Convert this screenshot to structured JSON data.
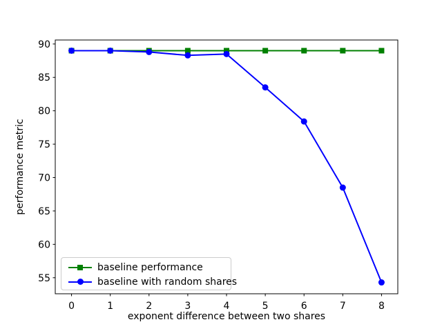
{
  "figure": {
    "background": "#ffffff",
    "frame_color": "#000000"
  },
  "chart_data": {
    "type": "line",
    "title": "",
    "xlabel": "exponent difference between two shares",
    "ylabel": "performance metric",
    "x": [
      0,
      1,
      2,
      3,
      4,
      5,
      6,
      7,
      8
    ],
    "series": [
      {
        "name": "baseline performance",
        "color": "#008000",
        "marker": "square",
        "values": [
          89,
          89,
          89,
          89,
          89,
          89,
          89,
          89,
          89
        ]
      },
      {
        "name": "baseline with random shares",
        "color": "#0000ff",
        "marker": "circle",
        "values": [
          89,
          89,
          88.8,
          88.3,
          88.5,
          83.5,
          78.4,
          68.5,
          54.3
        ]
      }
    ],
    "xticks": [
      0,
      1,
      2,
      3,
      4,
      5,
      6,
      7,
      8
    ],
    "yticks": [
      55,
      60,
      65,
      70,
      75,
      80,
      85,
      90
    ],
    "xlim": [
      -0.42,
      8.42
    ],
    "ylim": [
      52.6,
      90.6
    ],
    "grid": false,
    "legend": {
      "position": "lower left"
    }
  }
}
